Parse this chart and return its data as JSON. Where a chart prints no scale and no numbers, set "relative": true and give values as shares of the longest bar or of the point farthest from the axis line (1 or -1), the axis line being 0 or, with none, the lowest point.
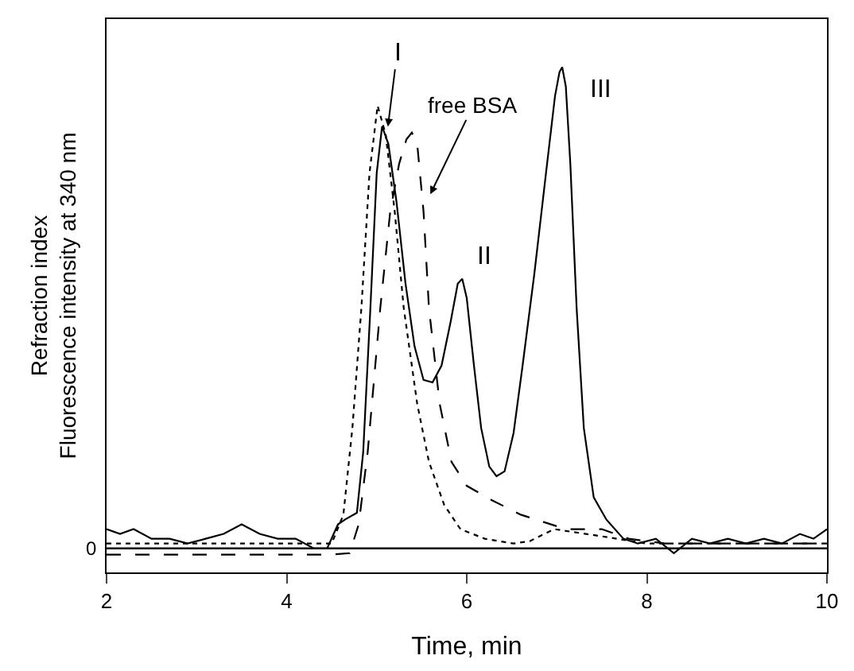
{
  "chart_data": {
    "type": "line",
    "relative": true,
    "xlabel": "Time, min",
    "ylabel": "Refraction index\nFluorescence intensity at 340 nm",
    "xlim": [
      2,
      10
    ],
    "xticks": [
      2,
      4,
      6,
      8,
      10
    ],
    "legend": false,
    "marker": "none",
    "ref_lines": [
      {
        "axis": "y",
        "value": 0,
        "label": "0",
        "color": "#000000"
      }
    ],
    "annotations": [
      {
        "text": "I",
        "x": 5.12,
        "y": 0.87
      },
      {
        "text": "free BSA",
        "x": 5.58,
        "y": 0.73
      },
      {
        "text": "II",
        "x": 5.95,
        "y": 0.56
      },
      {
        "text": "III",
        "x": 7.06,
        "y": 1.0
      }
    ],
    "series": [
      {
        "color": "#000000",
        "line_style": "solid",
        "x": [
          2.0,
          2.15,
          2.3,
          2.5,
          2.7,
          2.9,
          3.1,
          3.3,
          3.5,
          3.7,
          3.9,
          4.1,
          4.3,
          4.45,
          4.57,
          4.65,
          4.78,
          4.85,
          4.93,
          5.0,
          5.06,
          5.13,
          5.22,
          5.32,
          5.42,
          5.52,
          5.62,
          5.72,
          5.82,
          5.9,
          5.95,
          6.0,
          6.08,
          6.16,
          6.25,
          6.33,
          6.42,
          6.52,
          6.62,
          6.75,
          6.88,
          6.98,
          7.03,
          7.06,
          7.1,
          7.15,
          7.22,
          7.3,
          7.41,
          7.55,
          7.74,
          7.9,
          8.1,
          8.3,
          8.5,
          8.7,
          8.9,
          9.1,
          9.3,
          9.5,
          9.7,
          9.85,
          10.0
        ],
        "values": [
          0.04,
          0.03,
          0.04,
          0.02,
          0.02,
          0.01,
          0.02,
          0.03,
          0.05,
          0.03,
          0.02,
          0.02,
          0.0,
          0.0,
          0.05,
          0.06,
          0.074,
          0.2,
          0.5,
          0.78,
          0.877,
          0.84,
          0.72,
          0.55,
          0.42,
          0.35,
          0.345,
          0.38,
          0.47,
          0.55,
          0.56,
          0.52,
          0.38,
          0.25,
          0.17,
          0.15,
          0.16,
          0.24,
          0.38,
          0.57,
          0.78,
          0.94,
          0.99,
          1.0,
          0.96,
          0.8,
          0.5,
          0.25,
          0.106,
          0.06,
          0.02,
          0.01,
          0.02,
          -0.01,
          0.02,
          0.01,
          0.02,
          0.01,
          0.02,
          0.01,
          0.03,
          0.02,
          0.04
        ]
      },
      {
        "color": "#000000",
        "line_style": "dashed",
        "x": [
          2.0,
          3.0,
          4.0,
          4.5,
          4.7,
          4.8,
          4.9,
          5.04,
          5.15,
          5.25,
          5.33,
          5.39,
          5.45,
          5.52,
          5.58,
          5.7,
          5.83,
          6.0,
          6.28,
          6.6,
          7.1,
          7.5,
          7.8,
          8.2,
          8.6,
          9.0,
          9.5,
          10.0
        ],
        "values": [
          -0.013,
          -0.013,
          -0.013,
          -0.013,
          -0.01,
          0.05,
          0.2,
          0.5,
          0.7,
          0.8,
          0.85,
          0.864,
          0.84,
          0.7,
          0.5,
          0.3,
          0.18,
          0.13,
          0.1,
          0.07,
          0.04,
          0.04,
          0.02,
          0.01,
          0.01,
          0.01,
          0.01,
          0.01
        ]
      },
      {
        "color": "#000000",
        "line_style": "dotted",
        "x": [
          2.0,
          3.0,
          4.0,
          4.5,
          4.63,
          4.73,
          4.83,
          4.92,
          5.01,
          5.1,
          5.2,
          5.3,
          5.45,
          5.58,
          5.75,
          5.93,
          6.2,
          6.52,
          6.7,
          6.97,
          7.5,
          8.0,
          9.0,
          10.0
        ],
        "values": [
          0.01,
          0.01,
          0.01,
          0.01,
          0.07,
          0.25,
          0.5,
          0.78,
          0.92,
          0.86,
          0.7,
          0.5,
          0.3,
          0.18,
          0.09,
          0.04,
          0.02,
          0.01,
          0.015,
          0.04,
          0.025,
          0.01,
          0.01,
          0.01
        ]
      }
    ]
  }
}
